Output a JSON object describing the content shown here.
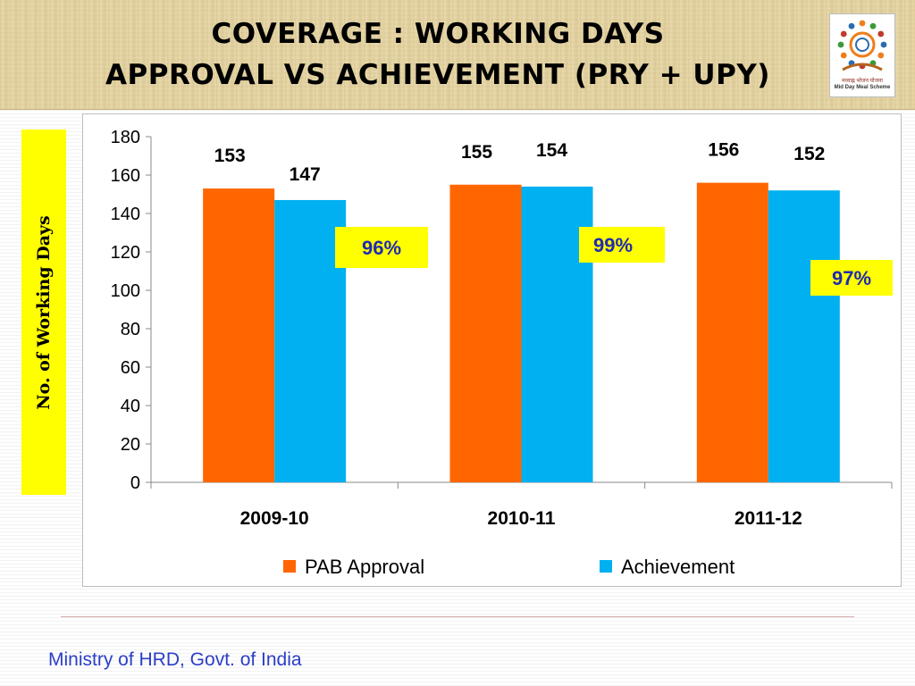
{
  "header": {
    "title_line1": "COVERAGE : WORKING DAYS",
    "title_line2": "APPROVAL  VS  ACHIEVEMENT (PRY + UPY)",
    "logo_text_hindi": "मध्याह्न भोजन योजना",
    "logo_text_english": "Mid Day Meal Scheme"
  },
  "y_axis_title": "No. of Working Days",
  "footer": "Ministry of HRD, Govt. of India",
  "colors": {
    "pab_approval": "#ff6600",
    "achievement": "#00b0f0",
    "callout_bg": "#ffff00",
    "callout_text": "#1f2bb0"
  },
  "chart_data": {
    "type": "bar",
    "categories": [
      "2009-10",
      "2010-11",
      "2011-12"
    ],
    "series": [
      {
        "name": "PAB Approval",
        "values": [
          153,
          155,
          156
        ]
      },
      {
        "name": "Achievement",
        "values": [
          147,
          154,
          152
        ]
      }
    ],
    "ylim": [
      0,
      180
    ],
    "yticks": [
      0,
      20,
      40,
      60,
      80,
      100,
      120,
      140,
      160,
      180
    ],
    "legend": "bottom",
    "grid": false,
    "callouts": [
      "96%",
      "99%",
      "97%"
    ]
  }
}
